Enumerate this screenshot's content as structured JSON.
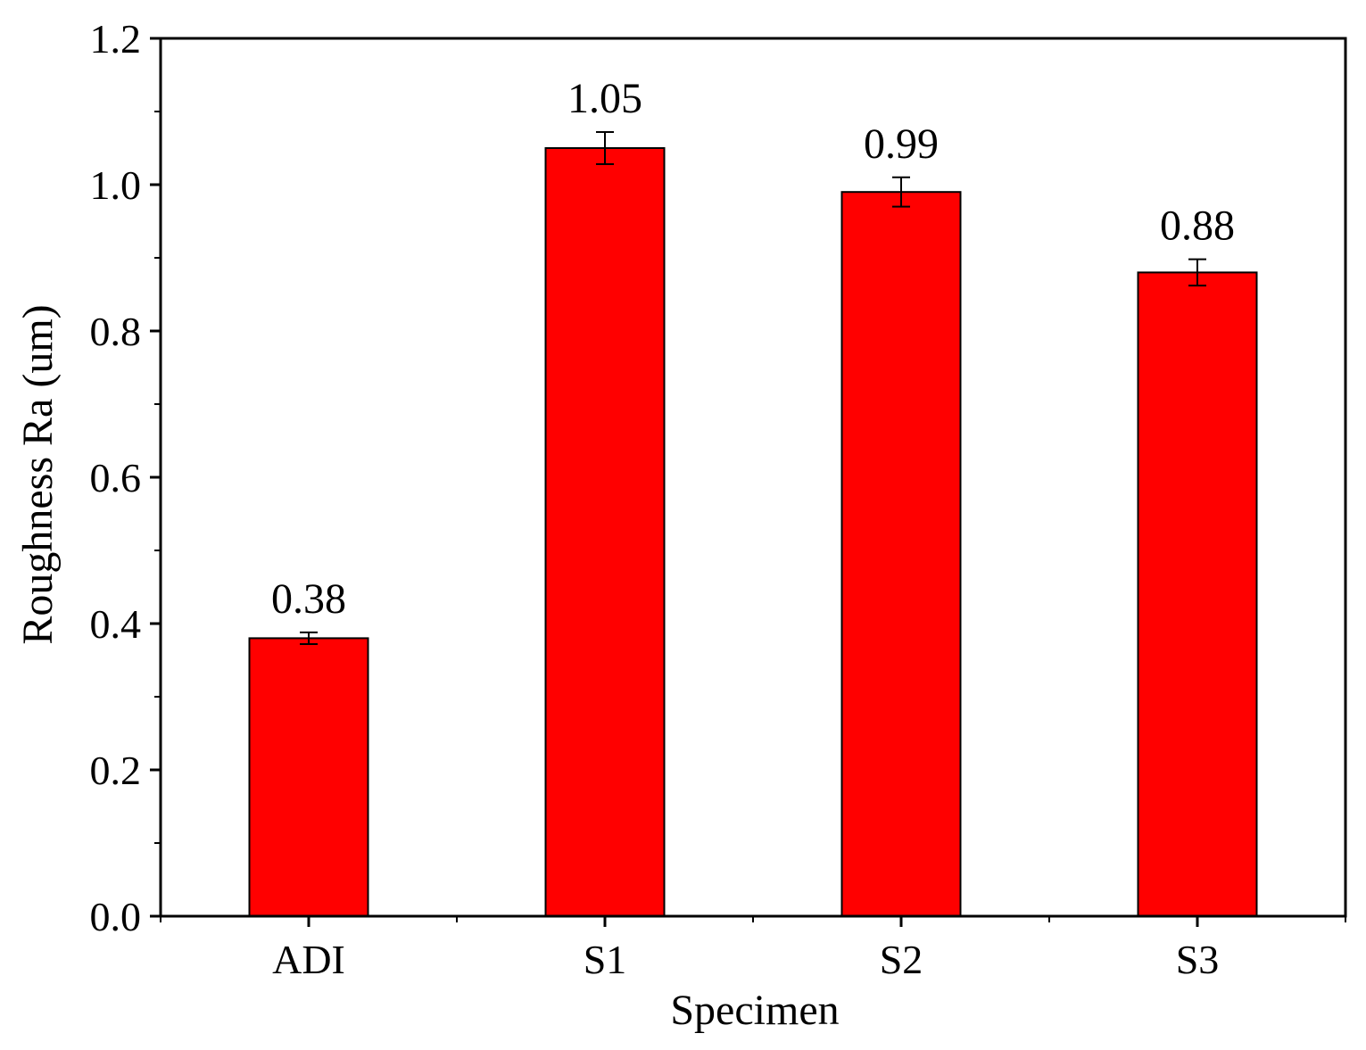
{
  "chart_data": {
    "type": "bar",
    "categories": [
      "ADI",
      "S1",
      "S2",
      "S3"
    ],
    "values": [
      0.38,
      1.05,
      0.99,
      0.88
    ],
    "errors": [
      0.008,
      0.022,
      0.02,
      0.018
    ],
    "data_labels": [
      "0.38",
      "1.05",
      "0.99",
      "0.88"
    ],
    "xlabel": "Specimen",
    "ylabel": "Roughness Ra (um)",
    "ylim": [
      0.0,
      1.2
    ],
    "yticks": [
      0.0,
      0.2,
      0.4,
      0.6,
      0.8,
      1.0,
      1.2
    ],
    "ytick_labels": [
      "0.0",
      "0.2",
      "0.4",
      "0.6",
      "0.8",
      "1.0",
      "1.2"
    ],
    "y_minor_step": 0.1,
    "grid": false,
    "legend": false,
    "bar_color": "#ff0000",
    "edge_color": "#000000"
  }
}
